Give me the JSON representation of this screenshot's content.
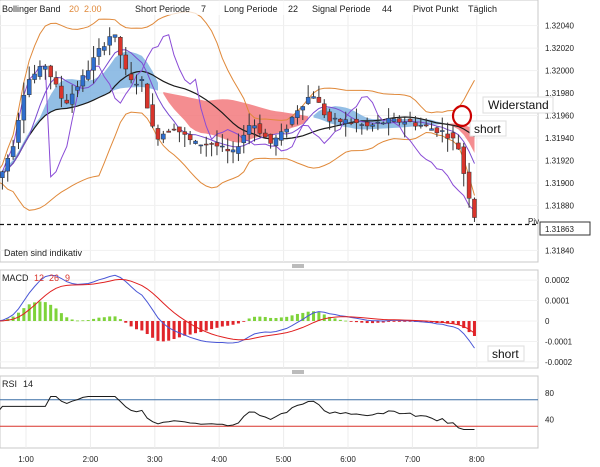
{
  "chart_data": [
    {
      "type": "candlestick",
      "panel": "price",
      "header": {
        "bb_label": "Bollinger Band",
        "bb_p1": "20",
        "bb_p2": "2.00",
        "short_label": "Short Periode",
        "short_val": "7",
        "long_label": "Long Periode",
        "long_val": "22",
        "signal_label": "Signal Periode",
        "signal_val": "44",
        "pivot_label": "Pivot Punkt",
        "pivot_val": "Täglich"
      },
      "note": "Daten sind indikativ",
      "ylim": [
        1.31835,
        1.32045
      ],
      "yticks": [
        "1.32040",
        "1.32020",
        "1.32000",
        "1.31980",
        "1.31960",
        "1.31940",
        "1.31920",
        "1.31900",
        "1.31880",
        "1.31840"
      ],
      "xticks": [
        "1:00",
        "2:00",
        "3:00",
        "4:00",
        "5:00",
        "6:00",
        "7:00",
        "8:00"
      ],
      "pivot_tag": "Piv",
      "current_price": "1.31863",
      "colors": {
        "up": "#2f6fd0",
        "down": "#d9342b",
        "cloud_bull": "#7fb3e0",
        "cloud_bear": "#f2797c",
        "bollinger": "#e0893a",
        "tenkan": "#7a4bd1",
        "kijun": "#1a1a1a",
        "purple": "#8a4bd6"
      },
      "annotations": [
        {
          "text": "Widerstand"
        },
        {
          "text": "short"
        }
      ]
    },
    {
      "type": "macd",
      "panel": "macd",
      "label": "MACD",
      "params": [
        "12",
        "26",
        "9"
      ],
      "ylim": [
        -0.00022,
        0.00022
      ],
      "yticks": [
        "0.0002",
        "0.0001",
        "0",
        "-0.0001",
        "-0.0002"
      ],
      "colors": {
        "pos": "#7ed33a",
        "neg": "#e0242a",
        "macd": "#4a57d6",
        "signal": "#e02020"
      },
      "annotation": "short"
    },
    {
      "type": "line",
      "panel": "rsi",
      "label": "RSI",
      "param": "14",
      "ylim": [
        0,
        100
      ],
      "yticks": [
        "80",
        "40"
      ],
      "levels": [
        70,
        30
      ]
    }
  ]
}
